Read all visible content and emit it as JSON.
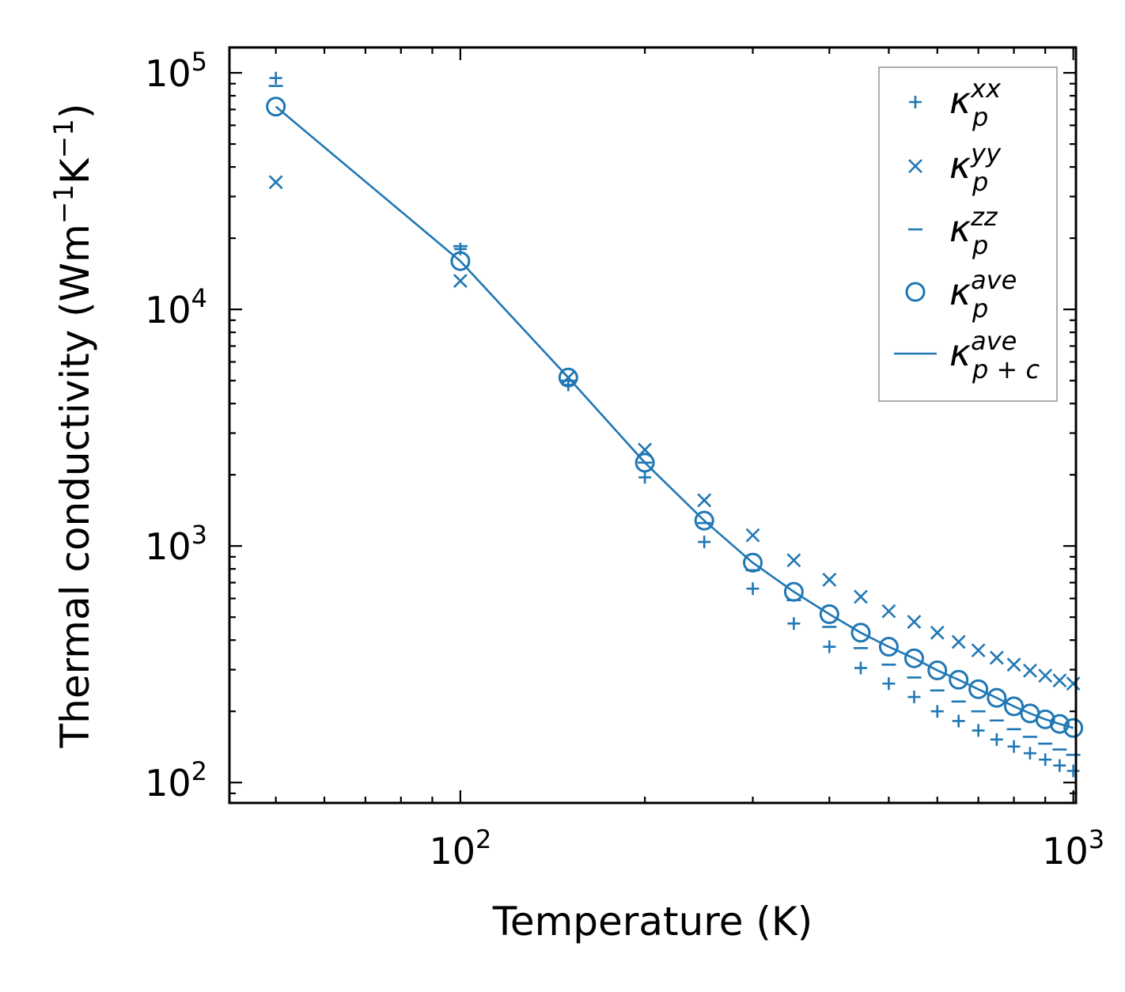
{
  "chart_data": {
    "type": "scatter",
    "xscale": "log",
    "yscale": "log",
    "xlim": [
      42,
      1010
    ],
    "ylim": [
      82,
      128000
    ],
    "xlabel": "Temperature (K)",
    "ylabel": {
      "base": "Thermal conductivity (Wm",
      "exp1": "−1",
      "mid": "K",
      "exp2": "−1",
      "end": ")"
    },
    "x_ticks": [
      {
        "value": 100,
        "base": "10",
        "exp": "2"
      },
      {
        "value": 1000,
        "base": "10",
        "exp": "3"
      }
    ],
    "y_ticks": [
      {
        "value": 100,
        "base": "10",
        "exp": "2"
      },
      {
        "value": 1000,
        "base": "10",
        "exp": "3"
      },
      {
        "value": 10000,
        "base": "10",
        "exp": "4"
      },
      {
        "value": 100000,
        "base": "10",
        "exp": "5"
      }
    ],
    "color": "#1f77b4",
    "legend": {
      "position": "upper right",
      "entries": [
        {
          "symbol": "plus",
          "base": "κ",
          "sup": "xx",
          "sub": "p"
        },
        {
          "symbol": "x",
          "base": "κ",
          "sup": "yy",
          "sub": "p"
        },
        {
          "symbol": "hline",
          "base": "κ",
          "sup": "zz",
          "sub": "p"
        },
        {
          "symbol": "circle",
          "base": "κ",
          "sup": "ave",
          "sub": "p"
        },
        {
          "symbol": "line",
          "base": "κ",
          "sup": "ave",
          "sub": "p + c"
        }
      ]
    },
    "x": [
      50,
      100,
      150,
      200,
      250,
      300,
      350,
      400,
      450,
      500,
      550,
      600,
      650,
      700,
      750,
      800,
      850,
      900,
      950,
      1000
    ],
    "series": [
      {
        "name": "kappa_p_xx",
        "marker": "plus",
        "values": [
          95000,
          18000,
          4800,
          1950,
          1040,
          660,
          470,
          375,
          305,
          262,
          230,
          200,
          182,
          166,
          152,
          142,
          133,
          125,
          118,
          112
        ]
      },
      {
        "name": "kappa_p_yy",
        "marker": "x",
        "values": [
          34500,
          13200,
          5150,
          2550,
          1560,
          1110,
          870,
          720,
          610,
          530,
          478,
          430,
          393,
          362,
          337,
          315,
          297,
          283,
          270,
          262
        ]
      },
      {
        "name": "kappa_p_zz",
        "marker": "hline",
        "values": [
          88000,
          18500,
          5000,
          2250,
          1250,
          790,
          590,
          455,
          370,
          315,
          278,
          245,
          220,
          200,
          183,
          168,
          156,
          146,
          138,
          131
        ]
      },
      {
        "name": "kappa_p_ave",
        "marker": "circle",
        "values": [
          72000,
          16000,
          5150,
          2250,
          1280,
          850,
          640,
          515,
          430,
          375,
          335,
          298,
          272,
          248,
          228,
          210,
          196,
          185,
          177,
          170
        ]
      },
      {
        "name": "kappa_p_plus_c_ave",
        "marker": "line",
        "values": [
          72000,
          16000,
          5150,
          2250,
          1280,
          850,
          640,
          515,
          430,
          375,
          335,
          298,
          272,
          248,
          228,
          210,
          196,
          185,
          177,
          170
        ]
      }
    ]
  }
}
